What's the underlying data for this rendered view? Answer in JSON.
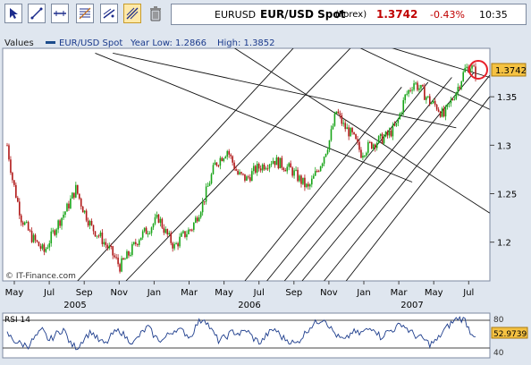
{
  "toolbar": {
    "icons": [
      "cursor-icon",
      "line-icon",
      "horizontal-line-icon",
      "fibonacci-icon",
      "trendline-icon",
      "andrews-pitchfork-icon",
      "trash-icon"
    ],
    "active": "andrews-pitchfork-icon"
  },
  "quote": {
    "ticker": "EURUSD",
    "name": "EUR/USD Spot",
    "type": "(Forex)",
    "price": "1.3742",
    "change": "-0.43%",
    "time": "10:35"
  },
  "legend": {
    "values_label": "Values",
    "series_name": "EUR/USD Spot",
    "year_low": "Year Low: 1.2866",
    "year_high": "High: 1.3852"
  },
  "watermark": "© IT-Finance.com",
  "colors": {
    "up": "#1aa51a",
    "down": "#b01818",
    "highlight_circle": "#e8202a",
    "last_price_box": "#f5c242"
  },
  "chart_data": {
    "type": "candlestick",
    "x_tick_labels": [
      "May",
      "Jul",
      "Sep",
      "Nov",
      "Jan",
      "Mar",
      "May",
      "Jul",
      "Sep",
      "Nov",
      "Jan",
      "Mar",
      "May",
      "Jul"
    ],
    "year_labels": [
      "2005",
      "2006",
      "2007"
    ],
    "y_ticks": [
      1.2,
      1.25,
      1.3,
      1.35
    ],
    "y_tick_labels": [
      "1.2",
      "1.25",
      "1.3",
      "1.35"
    ],
    "ylim": [
      1.16,
      1.4
    ],
    "last_price_label": "1.3742",
    "last_price": 1.3742,
    "path": [
      [
        0,
        1.3
      ],
      [
        6,
        1.265
      ],
      [
        16,
        1.225
      ],
      [
        28,
        1.205
      ],
      [
        42,
        1.19
      ],
      [
        55,
        1.215
      ],
      [
        68,
        1.235
      ],
      [
        78,
        1.255
      ],
      [
        86,
        1.235
      ],
      [
        96,
        1.215
      ],
      [
        106,
        1.205
      ],
      [
        118,
        1.19
      ],
      [
        128,
        1.175
      ],
      [
        140,
        1.19
      ],
      [
        150,
        1.205
      ],
      [
        162,
        1.215
      ],
      [
        172,
        1.225
      ],
      [
        180,
        1.21
      ],
      [
        190,
        1.195
      ],
      [
        198,
        1.205
      ],
      [
        210,
        1.215
      ],
      [
        222,
        1.24
      ],
      [
        236,
        1.28
      ],
      [
        250,
        1.295
      ],
      [
        262,
        1.27
      ],
      [
        272,
        1.265
      ],
      [
        282,
        1.275
      ],
      [
        292,
        1.28
      ],
      [
        302,
        1.285
      ],
      [
        312,
        1.28
      ],
      [
        322,
        1.275
      ],
      [
        332,
        1.265
      ],
      [
        342,
        1.255
      ],
      [
        350,
        1.27
      ],
      [
        358,
        1.285
      ],
      [
        366,
        1.305
      ],
      [
        374,
        1.335
      ],
      [
        382,
        1.32
      ],
      [
        392,
        1.31
      ],
      [
        402,
        1.292
      ],
      [
        412,
        1.3
      ],
      [
        422,
        1.305
      ],
      [
        432,
        1.31
      ],
      [
        442,
        1.32
      ],
      [
        452,
        1.35
      ],
      [
        462,
        1.365
      ],
      [
        472,
        1.355
      ],
      [
        480,
        1.345
      ],
      [
        488,
        1.34
      ],
      [
        496,
        1.33
      ],
      [
        504,
        1.345
      ],
      [
        512,
        1.36
      ],
      [
        520,
        1.378
      ],
      [
        526,
        1.382
      ],
      [
        532,
        1.374
      ]
    ],
    "overlay_lines_price": [
      [
        [
          100,
          1.395
        ],
        [
          460,
          1.262
        ]
      ],
      [
        [
          120,
          1.395
        ],
        [
          510,
          1.318
        ]
      ],
      [
        [
          390,
          1.405
        ],
        [
          548,
          1.337
        ]
      ],
      [
        [
          420,
          1.405
        ],
        [
          548,
          1.37
        ]
      ],
      [
        [
          250,
          1.405
        ],
        [
          548,
          1.23
        ]
      ],
      [
        [
          80,
          1.16
        ],
        [
          330,
          1.405
        ]
      ],
      [
        [
          135,
          1.16
        ],
        [
          395,
          1.405
        ]
      ],
      [
        [
          270,
          1.16
        ],
        [
          448,
          1.36
        ]
      ],
      [
        [
          295,
          1.16
        ],
        [
          478,
          1.365
        ]
      ],
      [
        [
          315,
          1.16
        ],
        [
          505,
          1.37
        ]
      ],
      [
        [
          335,
          1.16
        ],
        [
          530,
          1.375
        ]
      ],
      [
        [
          360,
          1.16
        ],
        [
          548,
          1.372
        ]
      ],
      [
        [
          385,
          1.16
        ],
        [
          548,
          1.35
        ]
      ]
    ],
    "rsi": {
      "label": "RSI 14",
      "y_tick_labels": [
        "80",
        "40"
      ],
      "value_label": "52.9739",
      "ylim": [
        20,
        85
      ],
      "x_path": [
        0,
        8,
        16,
        24,
        32,
        40,
        48,
        56,
        64,
        72,
        80,
        88,
        96,
        104,
        112,
        120,
        128,
        136,
        144,
        152,
        160,
        168,
        176,
        184,
        192,
        200,
        208,
        216,
        224,
        232,
        240,
        248,
        256,
        264,
        272,
        280,
        288,
        296,
        304,
        312,
        320,
        328,
        336,
        344,
        352,
        360,
        368,
        376,
        384,
        392,
        400,
        408,
        416,
        424,
        432,
        440,
        448,
        456,
        464,
        472,
        480,
        488,
        496,
        504,
        512,
        520,
        526,
        532
      ],
      "values": [
        55,
        45,
        40,
        38,
        50,
        60,
        45,
        55,
        62,
        40,
        35,
        50,
        58,
        45,
        40,
        55,
        60,
        48,
        42,
        55,
        65,
        50,
        45,
        55,
        62,
        58,
        50,
        70,
        78,
        60,
        45,
        50,
        58,
        55,
        60,
        48,
        42,
        55,
        62,
        50,
        45,
        40,
        52,
        65,
        72,
        78,
        62,
        50,
        45,
        58,
        55,
        60,
        65,
        50,
        58,
        62,
        70,
        60,
        52,
        48,
        40,
        45,
        60,
        70,
        78,
        75,
        58,
        53
      ]
    }
  }
}
